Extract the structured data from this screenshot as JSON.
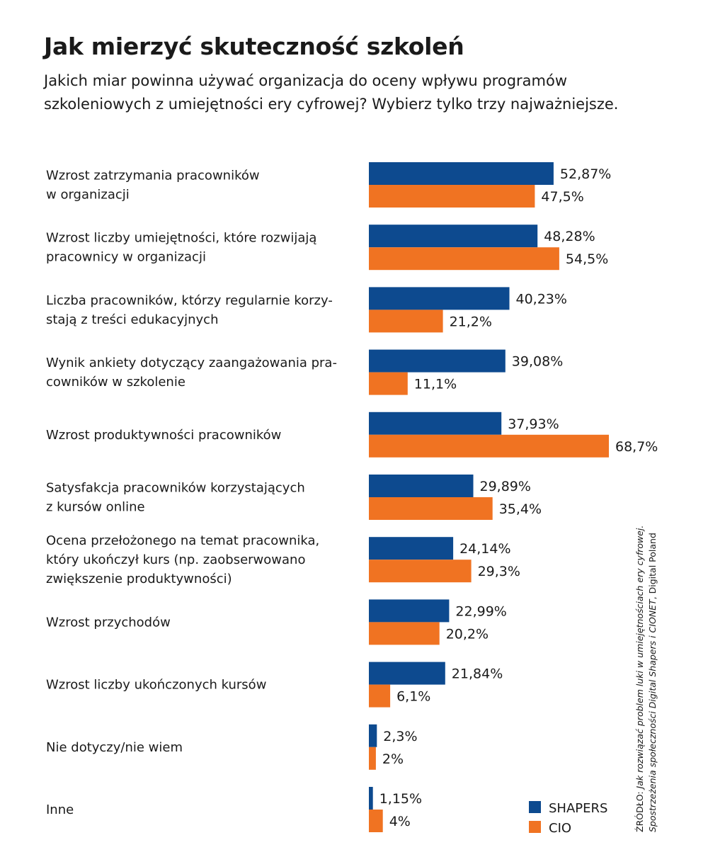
{
  "header": {
    "title": "Jak mierzyć skuteczność szkoleń",
    "subtitle": "Jakich miar powinna używać organizacja do oceny wpływu programów szkoleniowych z umiejętności ery cyfrowej? Wybierz tylko trzy najważniejsze."
  },
  "source": {
    "line1_prefix": "ŹRÓDŁO: ",
    "line1_title": "Jak rozwiązać problem luki w umiejętnościach ery cyfrowej.",
    "line2_title": "Spostrzeżenia społeczności Digital Shapers i CIONET",
    "line2_suffix": ", Digital Poland"
  },
  "colors": {
    "shapers": "#0d4a8f",
    "cio": "#f07322"
  },
  "chart_data": {
    "type": "bar",
    "orientation": "horizontal",
    "categories": [
      [
        "Wzrost zatrzymania pracowników",
        "w organizacji"
      ],
      [
        "Wzrost liczby umiejętności, które rozwijają",
        "pracownicy w organizacji"
      ],
      [
        "Liczba pracowników, którzy regularnie korzy-",
        "stają z treści edukacyjnych"
      ],
      [
        "Wynik ankiety dotyczący zaangażowania pra-",
        "cowników w szkolenie"
      ],
      [
        "Wzrost produktywności pracowników"
      ],
      [
        "Satysfakcja pracowników korzystających",
        "z kursów online"
      ],
      [
        "Ocena przełożonego na temat pracownika,",
        "który ukończył kurs (np. zaobserwowano",
        "zwiększenie produktywności)"
      ],
      [
        "Wzrost przychodów"
      ],
      [
        "Wzrost liczby ukończonych kursów"
      ],
      [
        "Nie dotyczy/nie wiem"
      ],
      [
        "Inne"
      ]
    ],
    "series": [
      {
        "name": "SHAPERS",
        "color": "#0d4a8f",
        "values": [
          52.87,
          48.28,
          40.23,
          39.08,
          37.93,
          29.89,
          24.14,
          22.99,
          21.84,
          2.3,
          1.15
        ],
        "labels": [
          "52,87%",
          "48,28%",
          "40,23%",
          "39,08%",
          "37,93%",
          "29,89%",
          "24,14%",
          "22,99%",
          "21,84%",
          "2,3%",
          "1,15%"
        ]
      },
      {
        "name": "CIO",
        "color": "#f07322",
        "values": [
          47.5,
          54.5,
          21.2,
          11.1,
          68.7,
          35.4,
          29.3,
          20.2,
          6.1,
          2,
          4
        ],
        "labels": [
          "47,5%",
          "54,5%",
          "21,2%",
          "11,1%",
          "68,7%",
          "35,4%",
          "29,3%",
          "20,2%",
          "6,1%",
          "2%",
          "4%"
        ]
      }
    ],
    "unit": "%",
    "xlim": [
      0,
      68.7
    ],
    "grid": false,
    "legend": "bottom-right"
  }
}
